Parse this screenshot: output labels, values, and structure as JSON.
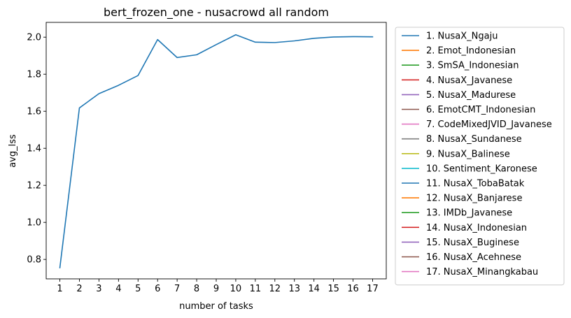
{
  "chart_data": {
    "type": "line",
    "title": "bert_frozen_one - nusacrowd all random",
    "xlabel": "number of tasks",
    "ylabel": "avg_lss",
    "x": [
      1,
      2,
      3,
      4,
      5,
      6,
      7,
      8,
      9,
      10,
      11,
      12,
      13,
      14,
      15,
      16,
      17
    ],
    "xlim": [
      0.3,
      17.7
    ],
    "ylim": [
      0.695,
      2.08
    ],
    "yticks": [
      "0.8",
      "1.0",
      "1.2",
      "1.4",
      "1.6",
      "1.8",
      "2.0"
    ],
    "yticks_values": [
      0.8,
      1.0,
      1.2,
      1.4,
      1.6,
      1.8,
      2.0
    ],
    "series": [
      {
        "name": "1. NusaX_Ngaju",
        "color": "#1f77b4",
        "values": [
          0.755,
          1.618,
          1.695,
          1.74,
          1.793,
          1.987,
          1.89,
          1.905,
          1.96,
          2.013,
          1.973,
          1.971,
          1.98,
          1.994,
          2.001,
          2.003,
          2.002
        ]
      }
    ],
    "legend": {
      "placement": "outside-right",
      "entries": [
        {
          "label": "1. NusaX_Ngaju",
          "color": "#1f77b4"
        },
        {
          "label": "2. Emot_Indonesian",
          "color": "#ff7f0e"
        },
        {
          "label": "3. SmSA_Indonesian",
          "color": "#2ca02c"
        },
        {
          "label": "4. NusaX_Javanese",
          "color": "#d62728"
        },
        {
          "label": "5. NusaX_Madurese",
          "color": "#9467bd"
        },
        {
          "label": "6. EmotCMT_Indonesian",
          "color": "#8c564b"
        },
        {
          "label": "7. CodeMixedJVID_Javanese",
          "color": "#e377c2"
        },
        {
          "label": "8. NusaX_Sundanese",
          "color": "#7f7f7f"
        },
        {
          "label": "9. NusaX_Balinese",
          "color": "#bcbd22"
        },
        {
          "label": "10. Sentiment_Karonese",
          "color": "#17becf"
        },
        {
          "label": "11. NusaX_TobaBatak",
          "color": "#1f77b4"
        },
        {
          "label": "12. NusaX_Banjarese",
          "color": "#ff7f0e"
        },
        {
          "label": "13. IMDb_Javanese",
          "color": "#2ca02c"
        },
        {
          "label": "14. NusaX_Indonesian",
          "color": "#d62728"
        },
        {
          "label": "15. NusaX_Buginese",
          "color": "#9467bd"
        },
        {
          "label": "16. NusaX_Acehnese",
          "color": "#8c564b"
        },
        {
          "label": "17. NusaX_Minangkabau",
          "color": "#e377c2"
        }
      ]
    }
  }
}
